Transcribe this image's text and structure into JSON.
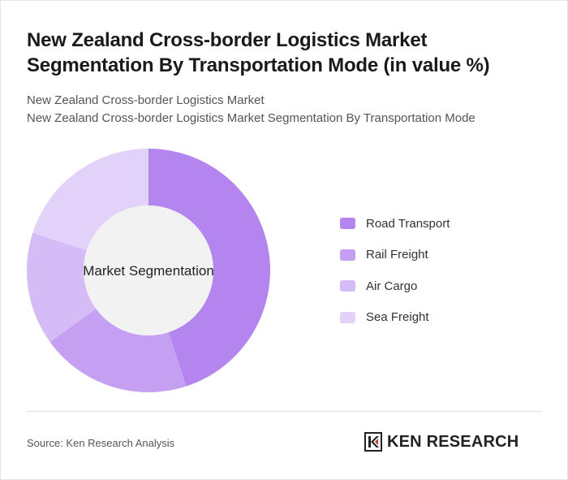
{
  "header": {
    "title": "New Zealand Cross-border Logistics Market Segmentation By Transportation Mode (in value %)",
    "subtitle_line1": "New Zealand Cross-border Logistics Market",
    "subtitle_line2": "New Zealand Cross-border Logistics Market Segmentation By Transportation Mode"
  },
  "chart_data": {
    "type": "pie",
    "center_label": "Market Segmentation",
    "categories": [
      "Road Transport",
      "Rail Freight",
      "Air Cargo",
      "Sea Freight"
    ],
    "values": [
      45,
      20,
      15,
      20
    ],
    "colors": [
      "#b485ee",
      "#c59ff2",
      "#d5bcf6",
      "#e2d1f9"
    ],
    "legend_position": "right"
  },
  "footer": {
    "source": "Source: Ken Research Analysis",
    "brand": "KEN RESEARCH",
    "logo_icon": "ken-research-logo-icon"
  },
  "colors": {
    "title": "#1a1a1a",
    "center_fill": "#f2f2f2"
  }
}
